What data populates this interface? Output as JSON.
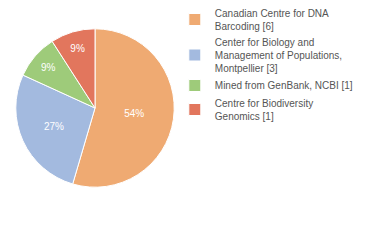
{
  "chart_data": {
    "type": "pie",
    "categories": [
      "Canadian Centre for DNA Barcoding [6]",
      "Center for Biology and Management of Populations, Montpellier [3]",
      "Mined from GenBank, NCBI [1]",
      "Centre for Biodiversity Genomics [1]"
    ],
    "values": [
      54,
      27,
      9,
      9
    ],
    "value_labels": [
      "54%",
      "27%",
      "9%",
      "9%"
    ],
    "colors": [
      "#efaa72",
      "#a3badf",
      "#9ecb7a",
      "#e2765d"
    ],
    "data_labels": true,
    "legend": "upper right"
  }
}
